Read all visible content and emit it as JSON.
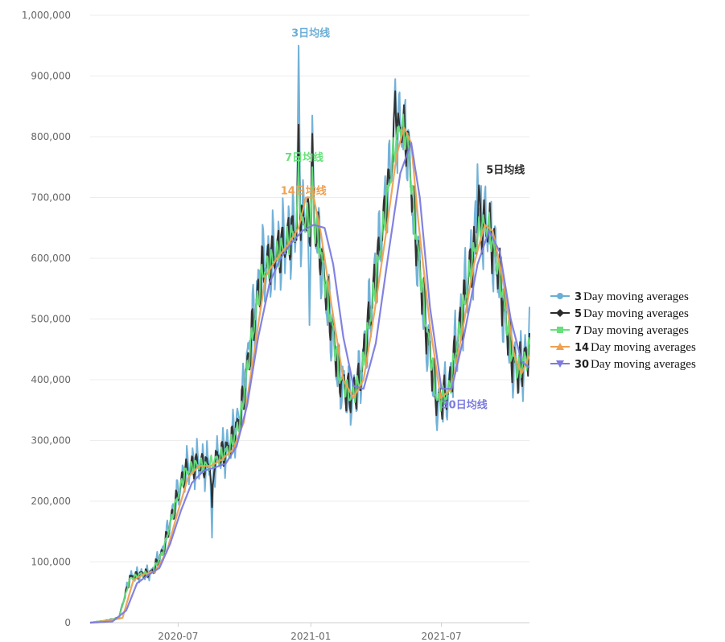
{
  "chart_data": {
    "type": "line",
    "title": "",
    "xlabel": "",
    "ylabel": "",
    "ylim": [
      0,
      1000000
    ],
    "xlim": [
      "2020-03-01",
      "2021-10-31"
    ],
    "y_ticks": [
      "0",
      "100,000",
      "200,000",
      "300,000",
      "400,000",
      "500,000",
      "600,000",
      "700,000",
      "800,000",
      "900,000",
      "1,000,000"
    ],
    "x_ticks": [
      {
        "date": "2020-07-01",
        "label": "2020-07"
      },
      {
        "date": "2021-01-01",
        "label": "2021-01"
      },
      {
        "date": "2021-07-01",
        "label": "2021-07"
      }
    ],
    "grid": "horizontal",
    "legend_position": "right",
    "series": [
      {
        "name_num": "3",
        "name_text": "Day moving averages",
        "color": "#6baed6",
        "marker": "circle",
        "anchors": [
          [
            "2020-03-01",
            0
          ],
          [
            "2020-03-20",
            3000
          ],
          [
            "2020-04-10",
            8000
          ],
          [
            "2020-04-25",
            75000
          ],
          [
            "2020-05-10",
            80000
          ],
          [
            "2020-05-25",
            82000
          ],
          [
            "2020-06-10",
            120000
          ],
          [
            "2020-06-25",
            190000
          ],
          [
            "2020-07-10",
            250000
          ],
          [
            "2020-07-25",
            262000
          ],
          [
            "2020-08-10",
            260000
          ],
          [
            "2020-08-25",
            272000
          ],
          [
            "2020-09-10",
            290000
          ],
          [
            "2020-09-25",
            340000
          ],
          [
            "2020-10-10",
            470000
          ],
          [
            "2020-10-25",
            585000
          ],
          [
            "2020-11-10",
            605000
          ],
          [
            "2020-11-25",
            625000
          ],
          [
            "2020-12-10",
            650000
          ],
          [
            "2020-12-25",
            670000
          ],
          [
            "2021-01-10",
            640000
          ],
          [
            "2021-01-25",
            520000
          ],
          [
            "2021-02-10",
            400000
          ],
          [
            "2021-02-25",
            370000
          ],
          [
            "2021-03-10",
            400000
          ],
          [
            "2021-03-25",
            520000
          ],
          [
            "2021-04-10",
            650000
          ],
          [
            "2021-04-25",
            780000
          ],
          [
            "2021-05-05",
            825000
          ],
          [
            "2021-05-15",
            790000
          ],
          [
            "2021-05-25",
            650000
          ],
          [
            "2021-06-10",
            480000
          ],
          [
            "2021-06-25",
            360000
          ],
          [
            "2021-07-10",
            380000
          ],
          [
            "2021-07-25",
            480000
          ],
          [
            "2021-08-10",
            590000
          ],
          [
            "2021-08-25",
            660000
          ],
          [
            "2021-09-05",
            650000
          ],
          [
            "2021-09-20",
            560000
          ],
          [
            "2021-10-05",
            440000
          ],
          [
            "2021-10-15",
            410000
          ],
          [
            "2021-10-31",
            450000
          ]
        ],
        "spikes": [
          [
            "2020-08-17",
            140000
          ],
          [
            "2020-12-15",
            950000
          ],
          [
            "2020-12-30",
            490000
          ],
          [
            "2021-01-03",
            835000
          ],
          [
            "2021-04-28",
            895000
          ],
          [
            "2021-08-20",
            755000
          ],
          [
            "2021-10-31",
            520000
          ]
        ],
        "noise": 90000
      },
      {
        "name_num": "5",
        "name_text": "Day moving averages",
        "color": "#2b2b2b",
        "marker": "diamond",
        "anchors": [
          [
            "2020-03-01",
            0
          ],
          [
            "2020-03-20",
            3000
          ],
          [
            "2020-04-10",
            8000
          ],
          [
            "2020-04-25",
            74000
          ],
          [
            "2020-05-10",
            80000
          ],
          [
            "2020-05-25",
            82000
          ],
          [
            "2020-06-10",
            118000
          ],
          [
            "2020-06-25",
            188000
          ],
          [
            "2020-07-10",
            248000
          ],
          [
            "2020-07-25",
            261000
          ],
          [
            "2020-08-10",
            259000
          ],
          [
            "2020-08-25",
            271000
          ],
          [
            "2020-09-10",
            288000
          ],
          [
            "2020-09-25",
            336000
          ],
          [
            "2020-10-10",
            465000
          ],
          [
            "2020-10-25",
            580000
          ],
          [
            "2020-11-10",
            603000
          ],
          [
            "2020-11-25",
            622000
          ],
          [
            "2020-12-10",
            648000
          ],
          [
            "2020-12-25",
            668000
          ],
          [
            "2021-01-10",
            642000
          ],
          [
            "2021-01-25",
            525000
          ],
          [
            "2021-02-10",
            402000
          ],
          [
            "2021-02-25",
            370000
          ],
          [
            "2021-03-10",
            398000
          ],
          [
            "2021-03-25",
            515000
          ],
          [
            "2021-04-10",
            645000
          ],
          [
            "2021-04-25",
            775000
          ],
          [
            "2021-05-05",
            822000
          ],
          [
            "2021-05-15",
            792000
          ],
          [
            "2021-05-25",
            655000
          ],
          [
            "2021-06-10",
            485000
          ],
          [
            "2021-06-25",
            362000
          ],
          [
            "2021-07-10",
            378000
          ],
          [
            "2021-07-25",
            476000
          ],
          [
            "2021-08-10",
            588000
          ],
          [
            "2021-08-25",
            658000
          ],
          [
            "2021-09-05",
            650000
          ],
          [
            "2021-09-20",
            565000
          ],
          [
            "2021-10-05",
            445000
          ],
          [
            "2021-10-15",
            412000
          ],
          [
            "2021-10-31",
            448000
          ]
        ],
        "spikes": [
          [
            "2020-08-17",
            190000
          ],
          [
            "2020-12-15",
            820000
          ],
          [
            "2021-01-03",
            805000
          ],
          [
            "2021-04-28",
            875000
          ],
          [
            "2021-08-22",
            720000
          ]
        ],
        "noise": 55000
      },
      {
        "name_num": "7",
        "name_text": "Day moving averages",
        "color": "#66e07a",
        "marker": "square",
        "anchors": [
          [
            "2020-03-01",
            0
          ],
          [
            "2020-03-20",
            3000
          ],
          [
            "2020-04-10",
            8000
          ],
          [
            "2020-04-25",
            72000
          ],
          [
            "2020-05-10",
            80000
          ],
          [
            "2020-05-25",
            82000
          ],
          [
            "2020-06-10",
            116000
          ],
          [
            "2020-06-25",
            186000
          ],
          [
            "2020-07-10",
            246000
          ],
          [
            "2020-07-25",
            260000
          ],
          [
            "2020-08-10",
            258000
          ],
          [
            "2020-08-25",
            270000
          ],
          [
            "2020-09-10",
            286000
          ],
          [
            "2020-09-25",
            332000
          ],
          [
            "2020-10-10",
            460000
          ],
          [
            "2020-10-25",
            575000
          ],
          [
            "2020-11-10",
            600000
          ],
          [
            "2020-11-25",
            620000
          ],
          [
            "2020-12-10",
            646000
          ],
          [
            "2020-12-25",
            666000
          ],
          [
            "2021-01-10",
            644000
          ],
          [
            "2021-01-25",
            528000
          ],
          [
            "2021-02-10",
            405000
          ],
          [
            "2021-02-25",
            371000
          ],
          [
            "2021-03-10",
            396000
          ],
          [
            "2021-03-25",
            510000
          ],
          [
            "2021-04-10",
            640000
          ],
          [
            "2021-04-25",
            770000
          ],
          [
            "2021-05-05",
            820000
          ],
          [
            "2021-05-15",
            794000
          ],
          [
            "2021-05-25",
            660000
          ],
          [
            "2021-06-10",
            490000
          ],
          [
            "2021-06-25",
            364000
          ],
          [
            "2021-07-10",
            376000
          ],
          [
            "2021-07-25",
            472000
          ],
          [
            "2021-08-10",
            585000
          ],
          [
            "2021-08-25",
            656000
          ],
          [
            "2021-09-05",
            650000
          ],
          [
            "2021-09-20",
            570000
          ],
          [
            "2021-10-05",
            450000
          ],
          [
            "2021-10-15",
            414000
          ],
          [
            "2021-10-31",
            446000
          ]
        ],
        "spikes": [
          [
            "2020-12-15",
            765000
          ],
          [
            "2021-01-03",
            750000
          ]
        ],
        "noise": 30000
      },
      {
        "name_num": "14",
        "name_text": "Day moving averages",
        "color": "#f0a050",
        "marker": "triangle-up",
        "anchors": [
          [
            "2020-03-01",
            0
          ],
          [
            "2020-03-25",
            3000
          ],
          [
            "2020-04-15",
            8000
          ],
          [
            "2020-04-30",
            70000
          ],
          [
            "2020-05-15",
            80000
          ],
          [
            "2020-05-30",
            84000
          ],
          [
            "2020-06-15",
            116000
          ],
          [
            "2020-06-30",
            180000
          ],
          [
            "2020-07-15",
            240000
          ],
          [
            "2020-07-30",
            258000
          ],
          [
            "2020-08-15",
            258000
          ],
          [
            "2020-08-30",
            268000
          ],
          [
            "2020-09-15",
            285000
          ],
          [
            "2020-09-30",
            330000
          ],
          [
            "2020-10-15",
            450000
          ],
          [
            "2020-10-30",
            570000
          ],
          [
            "2020-11-15",
            600000
          ],
          [
            "2020-11-30",
            622000
          ],
          [
            "2020-12-15",
            650000
          ],
          [
            "2020-12-25",
            700000
          ],
          [
            "2021-01-05",
            700000
          ],
          [
            "2021-01-15",
            640000
          ],
          [
            "2021-01-30",
            520000
          ],
          [
            "2021-02-15",
            400000
          ],
          [
            "2021-03-01",
            370000
          ],
          [
            "2021-03-15",
            400000
          ],
          [
            "2021-03-30",
            510000
          ],
          [
            "2021-04-15",
            640000
          ],
          [
            "2021-04-30",
            770000
          ],
          [
            "2021-05-10",
            815000
          ],
          [
            "2021-05-20",
            790000
          ],
          [
            "2021-05-30",
            660000
          ],
          [
            "2021-06-15",
            490000
          ],
          [
            "2021-06-30",
            370000
          ],
          [
            "2021-07-15",
            385000
          ],
          [
            "2021-07-30",
            480000
          ],
          [
            "2021-08-15",
            590000
          ],
          [
            "2021-08-30",
            655000
          ],
          [
            "2021-09-10",
            645000
          ],
          [
            "2021-09-25",
            560000
          ],
          [
            "2021-10-10",
            440000
          ],
          [
            "2021-10-20",
            410000
          ],
          [
            "2021-10-31",
            440000
          ]
        ],
        "spikes": [],
        "noise": 0
      },
      {
        "name_num": "30",
        "name_text": "Day moving averages",
        "color": "#7b7be0",
        "marker": "triangle-down",
        "anchors": [
          [
            "2020-03-01",
            0
          ],
          [
            "2020-04-01",
            2000
          ],
          [
            "2020-04-20",
            20000
          ],
          [
            "2020-05-05",
            65000
          ],
          [
            "2020-05-20",
            78000
          ],
          [
            "2020-06-05",
            90000
          ],
          [
            "2020-06-20",
            130000
          ],
          [
            "2020-07-05",
            185000
          ],
          [
            "2020-07-20",
            230000
          ],
          [
            "2020-08-05",
            250000
          ],
          [
            "2020-08-20",
            255000
          ],
          [
            "2020-09-05",
            262000
          ],
          [
            "2020-09-20",
            290000
          ],
          [
            "2020-10-05",
            360000
          ],
          [
            "2020-10-20",
            470000
          ],
          [
            "2020-11-05",
            560000
          ],
          [
            "2020-11-20",
            600000
          ],
          [
            "2020-12-05",
            625000
          ],
          [
            "2020-12-20",
            645000
          ],
          [
            "2021-01-05",
            655000
          ],
          [
            "2021-01-20",
            650000
          ],
          [
            "2021-02-01",
            590000
          ],
          [
            "2021-02-15",
            470000
          ],
          [
            "2021-03-01",
            390000
          ],
          [
            "2021-03-15",
            385000
          ],
          [
            "2021-04-01",
            460000
          ],
          [
            "2021-04-20",
            620000
          ],
          [
            "2021-05-05",
            740000
          ],
          [
            "2021-05-20",
            790000
          ],
          [
            "2021-06-01",
            700000
          ],
          [
            "2021-06-15",
            520000
          ],
          [
            "2021-07-01",
            385000
          ],
          [
            "2021-07-15",
            385000
          ],
          [
            "2021-08-01",
            470000
          ],
          [
            "2021-08-20",
            590000
          ],
          [
            "2021-09-05",
            645000
          ],
          [
            "2021-09-20",
            610000
          ],
          [
            "2021-10-05",
            500000
          ],
          [
            "2021-10-20",
            430000
          ],
          [
            "2021-10-31",
            420000
          ]
        ],
        "spikes": [],
        "noise": 0
      }
    ],
    "annotations": [
      {
        "text": "3日均线",
        "color": "#6baed6",
        "date": "2020-12-05",
        "y": 965000
      },
      {
        "text": "5日均线",
        "color": "#2b2b2b",
        "date": "2021-09-01",
        "y": 740000
      },
      {
        "text": "7日均线",
        "color": "#66e07a",
        "date": "2020-11-26",
        "y": 760000
      },
      {
        "text": "14日均线",
        "color": "#f0a050",
        "date": "2020-11-20",
        "y": 705000
      },
      {
        "text": "30日均线",
        "color": "#7b7be0",
        "date": "2021-07-01",
        "y": 353000
      }
    ]
  }
}
